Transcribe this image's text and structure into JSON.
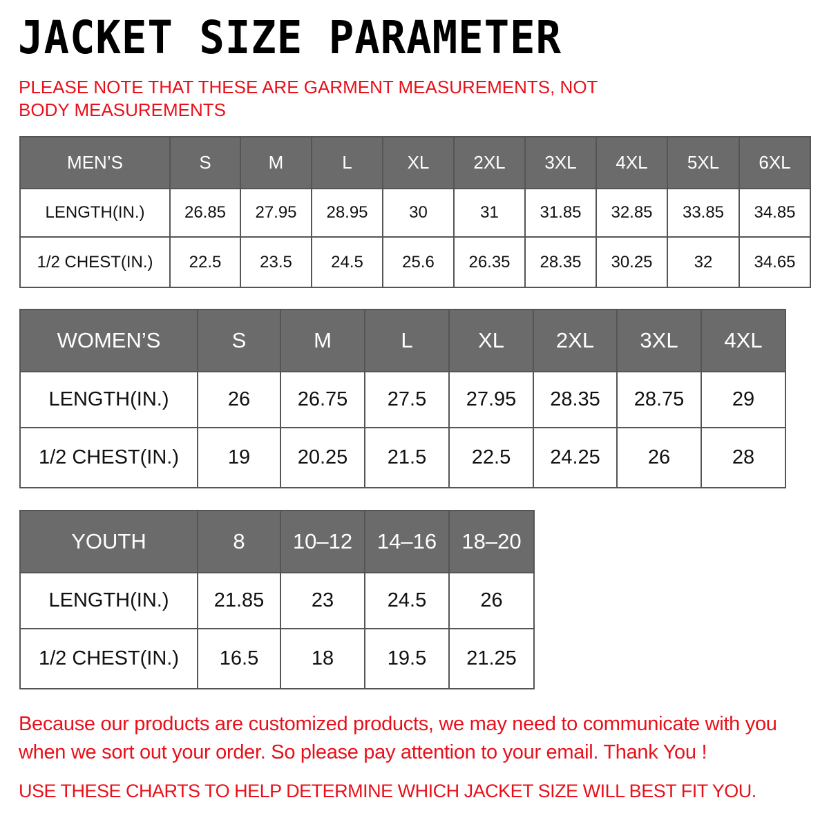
{
  "title": "JACKET SIZE PARAMETER",
  "note": "PLEASE NOTE THAT THESE ARE GARMENT MEASUREMENTS, NOT BODY MEASUREMENTS",
  "tables": {
    "men": {
      "header": [
        "MEN’S",
        "S",
        "M",
        "L",
        "XL",
        "2XL",
        "3XL",
        "4XL",
        "5XL",
        "6XL"
      ],
      "rows": [
        [
          "LENGTH(IN.)",
          "26.85",
          "27.95",
          "28.95",
          "30",
          "31",
          "31.85",
          "32.85",
          "33.85",
          "34.85"
        ],
        [
          "1/2 CHEST(IN.)",
          "22.5",
          "23.5",
          "24.5",
          "25.6",
          "26.35",
          "28.35",
          "30.25",
          "32",
          "34.65"
        ]
      ]
    },
    "women": {
      "header": [
        "WOMEN’S",
        "S",
        "M",
        "L",
        "XL",
        "2XL",
        "3XL",
        "4XL"
      ],
      "rows": [
        [
          "LENGTH(IN.)",
          "26",
          "26.75",
          "27.5",
          "27.95",
          "28.35",
          "28.75",
          "29"
        ],
        [
          "1/2 CHEST(IN.)",
          "19",
          "20.25",
          "21.5",
          "22.5",
          "24.25",
          "26",
          "28"
        ]
      ]
    },
    "youth": {
      "header": [
        "YOUTH",
        "8",
        "10–12",
        "14–16",
        "18–20"
      ],
      "rows": [
        [
          "LENGTH(IN.)",
          "21.85",
          "23",
          "24.5",
          "26"
        ],
        [
          "1/2 CHEST(IN.)",
          "16.5",
          "18",
          "19.5",
          "21.25"
        ]
      ]
    }
  },
  "footer": {
    "message": "Because our products are customized products, we may need to communicate with you when we sort out your order. So please pay attention to your email. Thank You !",
    "instruction": "USE THESE CHARTS TO HELP DETERMINE WHICH JACKET SIZE WILL BEST FIT YOU."
  },
  "colors": {
    "header_bg": "#6b6b6b",
    "accent_red": "#e8101a"
  }
}
